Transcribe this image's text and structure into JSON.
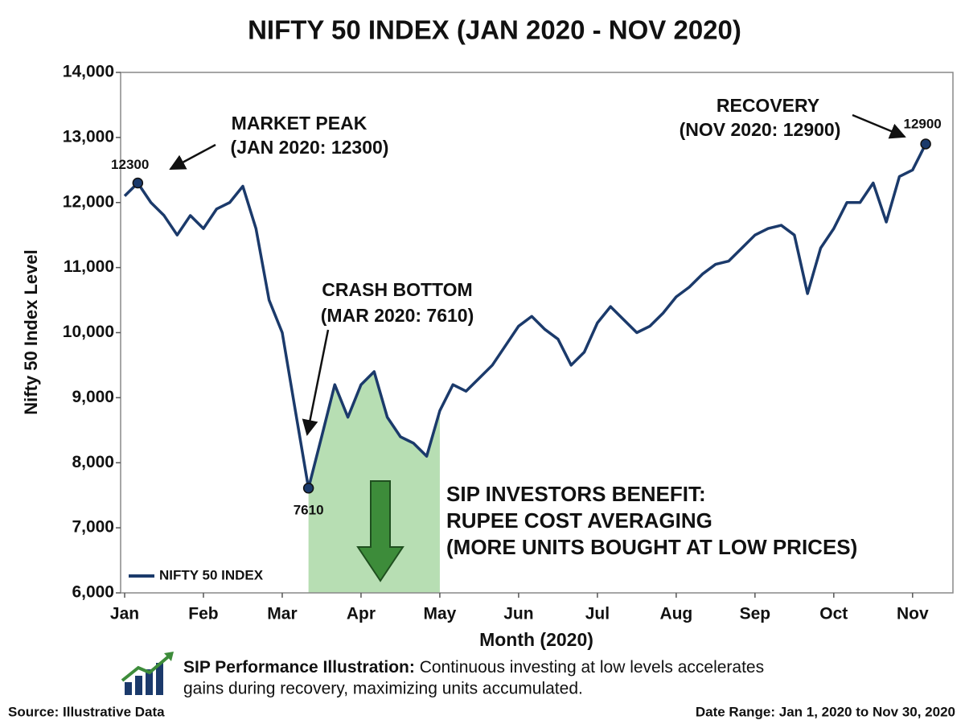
{
  "chart_data": {
    "type": "line",
    "title": "NIFTY 50 INDEX (JAN 2020 - NOV 2020)",
    "x_label": "Month (2020)",
    "y_label": "Nifty 50 Index Level",
    "categories": [
      "Jan",
      null,
      null,
      null,
      null,
      null,
      "Feb",
      null,
      null,
      null,
      null,
      null,
      "Mar",
      null,
      null,
      null,
      null,
      null,
      "Apr",
      null,
      null,
      null,
      null,
      null,
      "May",
      null,
      null,
      null,
      null,
      null,
      "Jun",
      null,
      null,
      null,
      null,
      null,
      "Jul",
      null,
      null,
      null,
      null,
      null,
      "Aug",
      null,
      null,
      null,
      null,
      null,
      "Sep",
      null,
      null,
      null,
      null,
      null,
      "Oct",
      null,
      null,
      null,
      null,
      null,
      "Nov",
      null
    ],
    "series": [
      {
        "name": "NIFTY 50 INDEX",
        "color": "#1b3a6b",
        "values": [
          12100,
          12300,
          12000,
          11800,
          11500,
          11800,
          11600,
          11900,
          12000,
          12250,
          11600,
          10500,
          10000,
          8800,
          7610,
          8400,
          9200,
          8700,
          9200,
          9400,
          8700,
          8400,
          8300,
          8100,
          8800,
          9200,
          9100,
          9300,
          9500,
          9800,
          10100,
          10250,
          10050,
          9900,
          9500,
          9700,
          10150,
          10400,
          10200,
          10000,
          10100,
          10300,
          10550,
          10700,
          10900,
          11050,
          11100,
          11300,
          11500,
          11600,
          11650,
          11500,
          10600,
          11300,
          11600,
          12000,
          12000,
          12300,
          11700,
          12400,
          12500,
          12900
        ]
      }
    ],
    "ylim": [
      6000,
      14000
    ],
    "yticks": [
      {
        "value": 6000,
        "label": "6,000"
      },
      {
        "value": 7000,
        "label": "7,000"
      },
      {
        "value": 8000,
        "label": "8,000"
      },
      {
        "value": 9000,
        "label": "9,000"
      },
      {
        "value": 10000,
        "label": "10,000"
      },
      {
        "value": 11000,
        "label": "11,000"
      },
      {
        "value": 12000,
        "label": "12,000"
      },
      {
        "value": 13000,
        "label": "13,000"
      },
      {
        "value": 14000,
        "label": "14,000"
      }
    ],
    "grid": false,
    "legend": "lower left",
    "annotations": {
      "peak": [
        "MARKET PEAK",
        "(JAN 2020: 12300)"
      ],
      "bottom": [
        "CRASH BOTTOM",
        "(MAR 2020: 7610)"
      ],
      "recovery": [
        "RECOVERY",
        "(NOV 2020: 12900)"
      ],
      "sip": [
        "SIP INVESTORS BENEFIT:",
        "RUPEE COST AVERAGING",
        "(MORE UNITS BOUGHT AT LOW PRICES)"
      ]
    },
    "footer": {
      "heading": "SIP Performance Illustration:",
      "text_line1": "Continuous investing at low levels accelerates",
      "text_line2": "gains during recovery, maximizing units accumulated.",
      "source": "Source: Illustrative Data",
      "date_range": "Date Range: Jan 1, 2020 to Nov 30, 2020"
    }
  }
}
